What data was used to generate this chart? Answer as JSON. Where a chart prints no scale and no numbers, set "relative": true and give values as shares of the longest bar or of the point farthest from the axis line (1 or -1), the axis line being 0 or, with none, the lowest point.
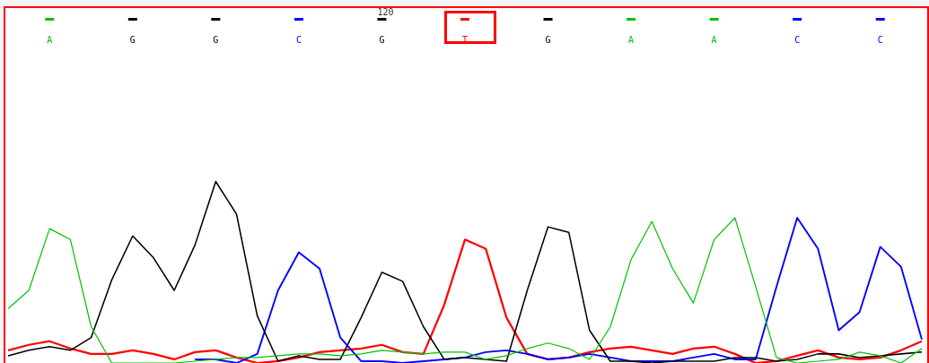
{
  "chart_data": {
    "type": "line",
    "relative": true,
    "annotations": [
      "120"
    ],
    "categories": [
      null,
      null,
      "A",
      null,
      null,
      null,
      "G",
      null,
      null,
      null,
      "G",
      null,
      null,
      null,
      "C",
      null,
      null,
      null,
      "G",
      null,
      null,
      null,
      "T",
      null,
      null,
      null,
      "G",
      null,
      null,
      null,
      "A",
      null,
      null,
      null,
      "A",
      null,
      null,
      null,
      "C",
      null,
      null,
      null,
      "C",
      null,
      null
    ],
    "legend": false,
    "marker": "none",
    "line_style": "solid",
    "series": [
      {
        "color": "#00c000",
        "values": [
          0.3,
          0.4,
          0.74,
          0.68,
          0.2,
          0,
          0,
          0,
          0,
          0.01,
          0.02,
          0.03,
          0.03,
          0.04,
          0.05,
          0.05,
          0.04,
          0.05,
          0.07,
          0.06,
          0.05,
          0.06,
          0.06,
          0.02,
          0.04,
          0.08,
          0.11,
          0.08,
          0.02,
          0.2,
          0.57,
          0.78,
          0.52,
          0.33,
          0.68,
          0.8,
          0.42,
          0.03,
          0,
          0.01,
          0.02,
          0.06,
          0.04,
          0,
          0.08
        ]
      },
      {
        "color": "#000000",
        "values": [
          0.04,
          0.07,
          0.09,
          0.07,
          0.14,
          0.46,
          0.7,
          0.58,
          0.4,
          0.65,
          1,
          0.82,
          0.26,
          0.01,
          0.04,
          0.02,
          0.02,
          0.25,
          0.5,
          0.45,
          0.2,
          0.02,
          0.03,
          0.02,
          0.01,
          0.4,
          0.75,
          0.72,
          0.18,
          0.01,
          0.01,
          0,
          0.01,
          0.01,
          0.01,
          0.03,
          0.03,
          0.01,
          0.02,
          0.05,
          0.05,
          0.03,
          0.04,
          0.05,
          0.06
        ]
      },
      {
        "color": "#0000ff",
        "values": [
          null,
          null,
          null,
          null,
          null,
          null,
          null,
          null,
          null,
          0.02,
          0.02,
          0,
          0.05,
          0.4,
          0.61,
          0.52,
          0.14,
          0.01,
          0.01,
          0,
          0.01,
          0.02,
          0.03,
          0.06,
          0.07,
          0.05,
          0.02,
          0.03,
          0.05,
          0.03,
          0.01,
          0.01,
          0.01,
          0.03,
          0.05,
          0.02,
          0.02,
          0.42,
          0.8,
          0.63,
          0.18,
          0.28,
          0.64,
          0.53,
          0.13
        ]
      },
      {
        "color": "#ff0000",
        "values": [
          0.07,
          0.1,
          0.12,
          0.08,
          0.05,
          0.05,
          0.07,
          0.05,
          0.02,
          0.06,
          0.07,
          0.03,
          0,
          0.01,
          0.03,
          0.06,
          0.07,
          0.08,
          0.1,
          0.06,
          0.05,
          0.32,
          0.68,
          0.63,
          0.25,
          0.05,
          0.02,
          0.03,
          0.06,
          0.08,
          0.09,
          0.07,
          0.05,
          0.08,
          0.09,
          0.05,
          0,
          0.01,
          0.04,
          0.07,
          0.03,
          0.02,
          0.03,
          0.07,
          0.12
        ]
      }
    ]
  }
}
